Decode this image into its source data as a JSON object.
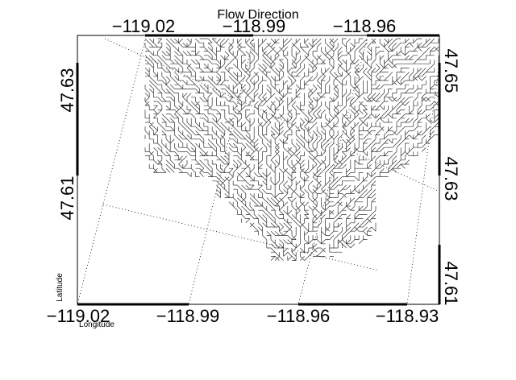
{
  "title": "Flow Direction",
  "axis_labels": {
    "x": "Longitude",
    "y": "Latitude"
  },
  "ticks": {
    "bottom": [
      "−119.02",
      "−118.99",
      "−118.96",
      "−118.93"
    ],
    "top": [
      "−119.02",
      "−118.99",
      "−118.96"
    ],
    "left": [
      "47.63",
      "47.61"
    ],
    "right": [
      "47.65",
      "47.63",
      "47.61"
    ]
  },
  "colors": {
    "frame": "#000000",
    "grid": "#000000",
    "flow": "#333333",
    "background": "#ffffff"
  },
  "map": {
    "projection": "rotated lat/lon grid",
    "grid": "dotted",
    "layer": "flow-direction-network"
  }
}
